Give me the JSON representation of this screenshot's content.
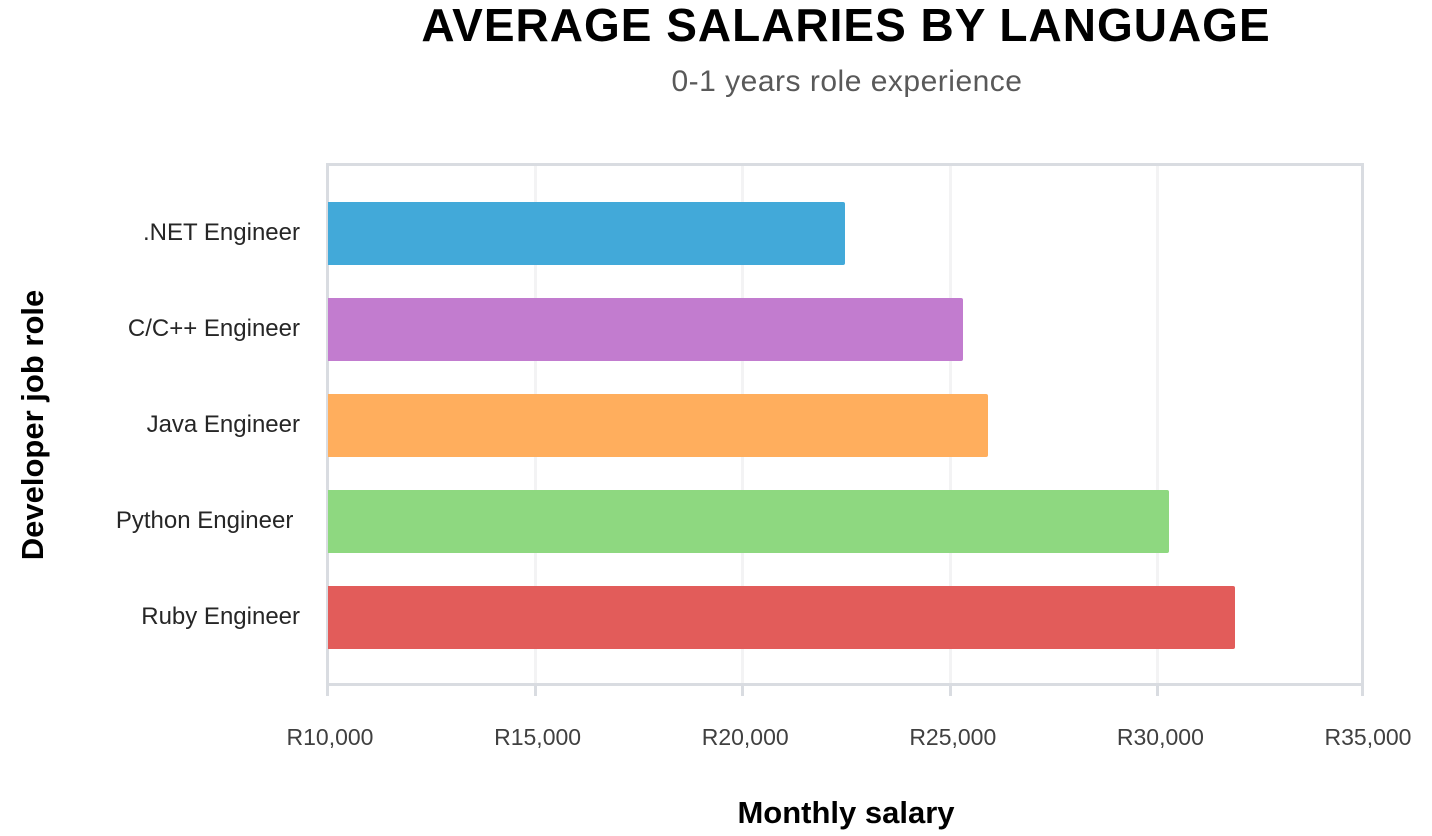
{
  "chart_data": {
    "type": "bar",
    "orientation": "horizontal",
    "title": "AVERAGE SALARIES BY LANGUAGE",
    "subtitle": "0-1 years role experience",
    "xlabel": "Monthly salary",
    "ylabel": "Developer job role",
    "categories": [
      ".NET Engineer",
      "C/C++ Engineer",
      "Java Engineer",
      "Python Engineer ",
      "Ruby Engineer"
    ],
    "values": [
      22500,
      25350,
      25950,
      30300,
      31900
    ],
    "colors": [
      "#42a9d9",
      "#c27ccf",
      "#ffae5d",
      "#8ed880",
      "#e25c5a"
    ],
    "xlim": [
      10000,
      35000
    ],
    "xticks": [
      10000,
      15000,
      20000,
      25000,
      30000,
      35000
    ],
    "xtick_labels": [
      "R10,000",
      "R15,000",
      "R20,000",
      "R25,000",
      "R30,000",
      "R35,000"
    ],
    "grid": {
      "vertical": true,
      "horizontal": false
    },
    "legend": null
  }
}
